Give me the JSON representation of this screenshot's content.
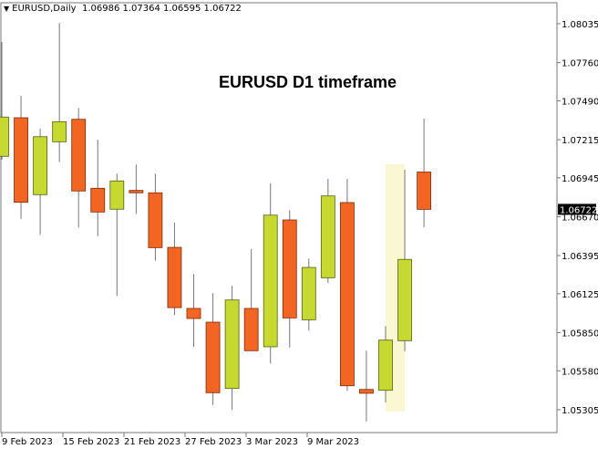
{
  "header": {
    "symbol_label": "EURUSD,Daily",
    "ohlc_label": "1.06986 1.07364 1.06595 1.06722",
    "menu_icon": "triangle-down-icon"
  },
  "chart_data": {
    "type": "candlestick",
    "title": "EURUSD D1 timeframe",
    "symbol": "EURUSD",
    "timeframe": "Daily",
    "ylim": [
      1.0516,
      1.0812
    ],
    "y_ticks": [
      "1.08035",
      "1.07760",
      "1.07490",
      "1.07215",
      "1.06945",
      "1.06670",
      "1.06395",
      "1.06125",
      "1.05850",
      "1.05580",
      "1.05305"
    ],
    "x_ticks": [
      "9 Feb 2023",
      "15 Feb 2023",
      "21 Feb 2023",
      "27 Feb 2023",
      "3 Mar 2023",
      "9 Mar 2023"
    ],
    "current_price": "1.06722",
    "colors": {
      "bull": "#C5D930",
      "bear": "#F26522",
      "highlight": "#FAF8D2",
      "wick": "#777777"
    },
    "candles": [
      {
        "o": 1.07097,
        "h": 1.07906,
        "l": 1.07073,
        "c": 1.07375
      },
      {
        "o": 1.0737,
        "h": 1.07525,
        "l": 1.06654,
        "c": 1.06772
      },
      {
        "o": 1.06826,
        "h": 1.07293,
        "l": 1.06542,
        "c": 1.07236
      },
      {
        "o": 1.072,
        "h": 1.08041,
        "l": 1.07058,
        "c": 1.07342
      },
      {
        "o": 1.07359,
        "h": 1.07439,
        "l": 1.06594,
        "c": 1.06852
      },
      {
        "o": 1.06871,
        "h": 1.07215,
        "l": 1.06533,
        "c": 1.06703
      },
      {
        "o": 1.06723,
        "h": 1.06974,
        "l": 1.06109,
        "c": 1.06923
      },
      {
        "o": 1.06856,
        "h": 1.07039,
        "l": 1.0669,
        "c": 1.06839
      },
      {
        "o": 1.06839,
        "h": 1.06974,
        "l": 1.06359,
        "c": 1.06451
      },
      {
        "o": 1.06453,
        "h": 1.06628,
        "l": 1.05974,
        "c": 1.06027
      },
      {
        "o": 1.06021,
        "h": 1.06264,
        "l": 1.05748,
        "c": 1.0595
      },
      {
        "o": 1.05924,
        "h": 1.06129,
        "l": 1.05339,
        "c": 1.05425
      },
      {
        "o": 1.05455,
        "h": 1.06182,
        "l": 1.05304,
        "c": 1.06081
      },
      {
        "o": 1.06021,
        "h": 1.06441,
        "l": 1.05722,
        "c": 1.05722
      },
      {
        "o": 1.0575,
        "h": 1.06907,
        "l": 1.05632,
        "c": 1.06681
      },
      {
        "o": 1.06647,
        "h": 1.06716,
        "l": 1.05745,
        "c": 1.05954
      },
      {
        "o": 1.05941,
        "h": 1.06374,
        "l": 1.05864,
        "c": 1.06311
      },
      {
        "o": 1.06238,
        "h": 1.06938,
        "l": 1.06202,
        "c": 1.06817
      },
      {
        "o": 1.0677,
        "h": 1.06938,
        "l": 1.05438,
        "c": 1.05474
      },
      {
        "o": 1.05448,
        "h": 1.05722,
        "l": 1.05222,
        "c": 1.05421
      },
      {
        "o": 1.05442,
        "h": 1.05896,
        "l": 1.05356,
        "c": 1.05797
      },
      {
        "o": 1.05793,
        "h": 1.07002,
        "l": 1.05718,
        "c": 1.06368
      },
      {
        "o": 1.06986,
        "h": 1.07364,
        "l": 1.06595,
        "c": 1.06722
      }
    ],
    "highlighted_candles": [
      20,
      21
    ]
  }
}
